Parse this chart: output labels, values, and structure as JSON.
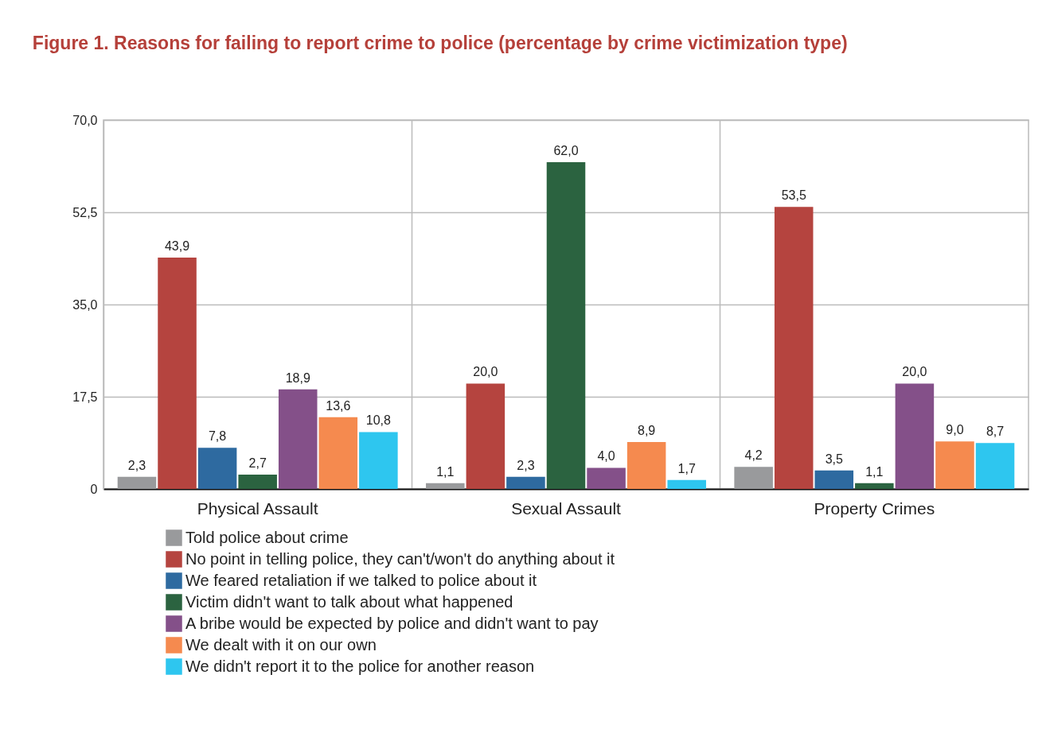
{
  "chart_data": {
    "type": "bar",
    "title": "Figure 1. Reasons for failing to report crime to police (percentage by crime victimization type)",
    "categories": [
      "Physical Assault",
      "Sexual Assault",
      "Property Crimes"
    ],
    "series": [
      {
        "name": "Told police about crime",
        "color": "#999a9c",
        "values": [
          2.3,
          1.1,
          4.2
        ],
        "value_labels": [
          "2,3",
          "1,1",
          "4,2"
        ]
      },
      {
        "name": "No point in telling police, they can't/won't do anything about it",
        "color": "#b5443f",
        "values": [
          43.9,
          20.0,
          53.5
        ],
        "value_labels": [
          "43,9",
          "20,0",
          "53,5"
        ]
      },
      {
        "name": "We feared retaliation if we talked to police about it",
        "color": "#2e6aa0",
        "values": [
          7.8,
          2.3,
          3.5
        ],
        "value_labels": [
          "7,8",
          "2,3",
          "3,5"
        ]
      },
      {
        "name": "Victim didn't want to talk about what happened",
        "color": "#2b6340",
        "values": [
          2.7,
          62.0,
          1.1
        ],
        "value_labels": [
          "2,7",
          "62,0",
          "1,1"
        ]
      },
      {
        "name": "A bribe would be expected by police and didn't want to pay",
        "color": "#845089",
        "values": [
          18.9,
          4.0,
          20.0
        ],
        "value_labels": [
          "18,9",
          "4,0",
          "20,0"
        ]
      },
      {
        "name": "We dealt with it on our own",
        "color": "#f58a4f",
        "values": [
          13.6,
          8.9,
          9.0
        ],
        "value_labels": [
          "13,6",
          "8,9",
          "9,0"
        ]
      },
      {
        "name": "We didn't report it to the police for another reason",
        "color": "#2ec6ef",
        "values": [
          10.8,
          1.7,
          8.7
        ],
        "value_labels": [
          "10,8",
          "1,7",
          "8,7"
        ]
      }
    ],
    "ylim": [
      0,
      70
    ],
    "yticks": [
      0,
      {
        "value": 17.5,
        "label": "17,5"
      },
      {
        "value": 35,
        "label": "35,0"
      },
      {
        "value": 52.5,
        "label": "52,5"
      },
      {
        "value": 70,
        "label": "70,0"
      }
    ],
    "grid": true,
    "legend": "bottom left"
  }
}
